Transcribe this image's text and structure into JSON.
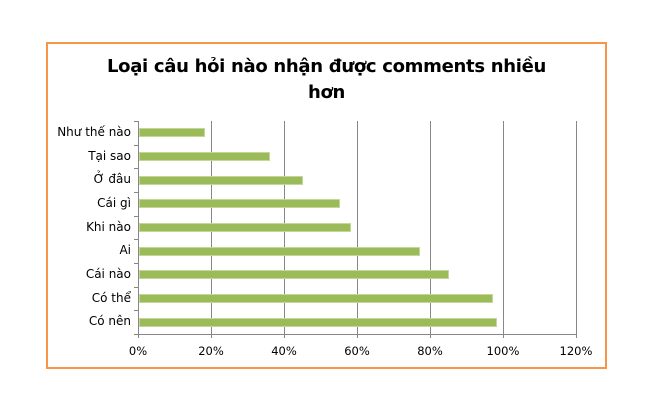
{
  "chart_data": {
    "type": "bar",
    "orientation": "horizontal",
    "title": "Loại câu hỏi nào nhận được comments nhiều hơn",
    "title_lines": [
      "Loại câu hỏi nào nhận được comments nhiều",
      "hơn"
    ],
    "categories": [
      "Như thế nào",
      "Tại sao",
      "Ở đâu",
      "Cái gì",
      "Khi nào",
      "Ai",
      "Cái nào",
      "Có thể",
      "Có nên"
    ],
    "values": [
      18,
      36,
      45,
      55,
      58,
      77,
      85,
      97,
      98
    ],
    "value_unit": "%",
    "xlabel": "",
    "ylabel": "",
    "xlim": [
      0,
      120
    ],
    "x_ticks": [
      "0%",
      "20%",
      "40%",
      "60%",
      "80%",
      "100%",
      "120%"
    ],
    "grid": "vertical major gridlines",
    "legend": "none",
    "bar_color": "#9BBB59",
    "frame_color": "#F79646"
  }
}
